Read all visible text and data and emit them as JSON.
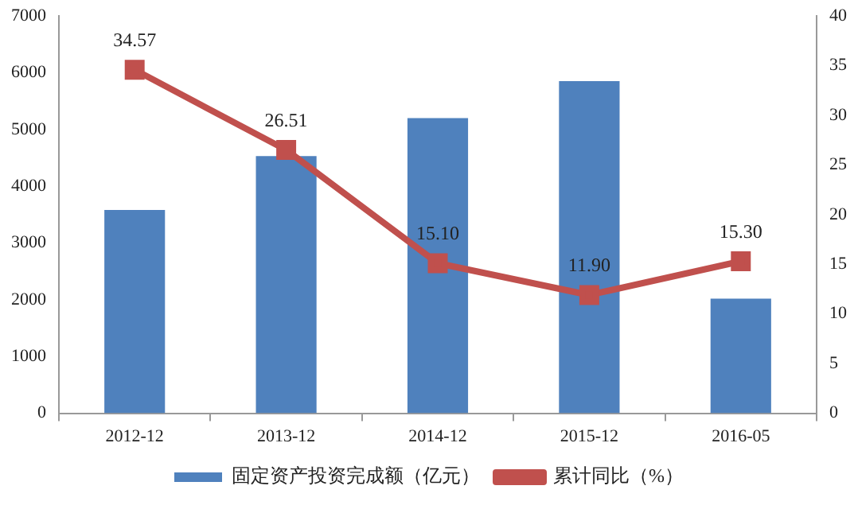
{
  "chart_data": {
    "type": "bar",
    "categories": [
      "2012-12",
      "2013-12",
      "2014-12",
      "2015-12",
      "2016-05"
    ],
    "series": [
      {
        "name": "固定资产投资完成额（亿元）",
        "color": "#4f81bd",
        "values": [
          3580,
          4530,
          5200,
          5850,
          2020
        ]
      },
      {
        "name": "累计同比（%）",
        "type": "line",
        "axis": "y2",
        "color": "#c0504d",
        "values": [
          34.57,
          26.51,
          15.1,
          11.9,
          15.3
        ],
        "value_labels": [
          "34.57",
          "26.51",
          "15.10",
          "11.90",
          "15.30"
        ],
        "marker": "square"
      }
    ],
    "ylim": [
      0,
      7000
    ],
    "yticks": [
      0,
      1000,
      2000,
      3000,
      4000,
      5000,
      6000,
      7000
    ],
    "y2lim": [
      0,
      40
    ],
    "y2ticks": [
      0,
      5,
      10,
      15,
      20,
      25,
      30,
      35,
      40
    ],
    "grid": false,
    "legend": "bottom"
  }
}
